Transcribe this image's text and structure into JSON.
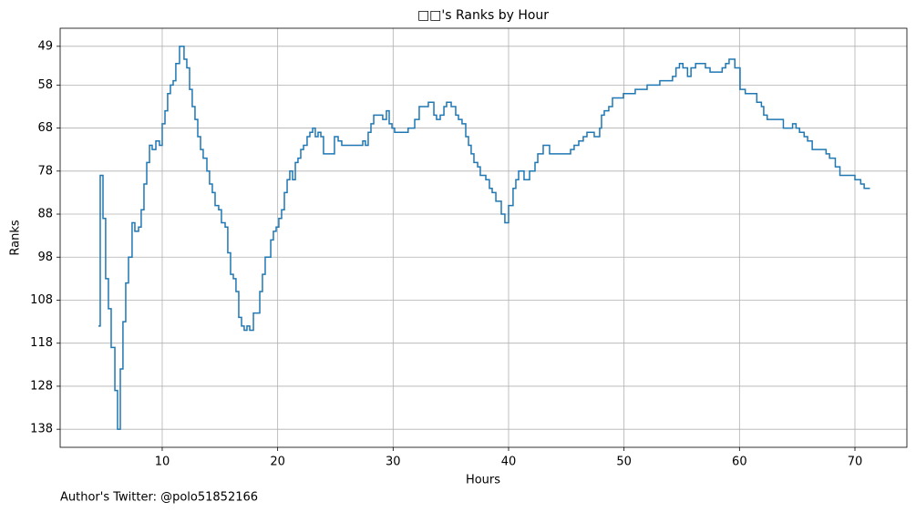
{
  "chart_data": {
    "type": "line",
    "drawstyle": "steps-post",
    "title": "□□'s Ranks by Hour",
    "x_label": "Hours",
    "y_label": "Ranks",
    "footnote": "Author's Twitter: @polo51852166",
    "x": [
      4.47,
      4.63,
      4.87,
      5.1,
      5.34,
      5.58,
      5.9,
      6.13,
      6.37,
      6.6,
      6.84,
      7.08,
      7.39,
      7.63,
      7.95,
      8.18,
      8.42,
      8.66,
      8.9,
      9.13,
      9.45,
      9.76,
      10,
      10.24,
      10.47,
      10.71,
      10.95,
      11.18,
      11.5,
      11.89,
      12.13,
      12.37,
      12.6,
      12.84,
      13.08,
      13.32,
      13.55,
      13.87,
      14.1,
      14.34,
      14.58,
      14.89,
      15.13,
      15.45,
      15.68,
      15.92,
      16.16,
      16.39,
      16.63,
      16.87,
      17.1,
      17.34,
      17.58,
      17.9,
      18.45,
      18.68,
      18.92,
      19.4,
      19.63,
      19.87,
      20.1,
      20.34,
      20.58,
      20.82,
      21.05,
      21.29,
      21.53,
      21.76,
      22,
      22.24,
      22.55,
      22.79,
      23.03,
      23.26,
      23.5,
      23.74,
      23.97,
      24.92,
      25.24,
      25.55,
      26.34,
      27.37,
      27.6,
      27.84,
      28.08,
      28.32,
      29.1,
      29.42,
      29.66,
      29.9,
      30.13,
      31.3,
      31.87,
      32.26,
      33.05,
      33.53,
      33.76,
      34.08,
      34.4,
      34.63,
      35.03,
      35.42,
      35.66,
      35.97,
      36.29,
      36.53,
      36.76,
      37,
      37.32,
      37.55,
      38.03,
      38.34,
      38.58,
      38.9,
      39.37,
      39.68,
      40,
      40.39,
      40.63,
      40.87,
      41.34,
      41.82,
      42.29,
      42.53,
      43,
      43.55,
      45.37,
      45.68,
      46.08,
      46.47,
      46.79,
      47.42,
      47.89,
      48.05,
      48.29,
      48.68,
      49,
      49.63,
      49.95,
      50.97,
      52,
      53.1,
      54.2,
      54.5,
      54.8,
      55.1,
      55.5,
      55.8,
      56.2,
      57.05,
      57.45,
      58.5,
      58.8,
      59.1,
      59.6,
      60.05,
      60.5,
      61.5,
      61.9,
      62.1,
      62.4,
      63.8,
      64.6,
      64.9,
      65.2,
      65.6,
      65.9,
      66.3,
      67.5,
      67.8,
      68.3,
      68.7,
      70,
      70.5,
      70.8,
      71.3
    ],
    "series": [
      {
        "name": "Ranks",
        "color": "#1f77b4",
        "values": [
          114,
          79,
          89,
          103,
          110,
          119,
          129,
          138,
          124,
          113,
          104,
          98,
          90,
          92,
          91,
          87,
          81,
          76,
          72,
          73,
          71,
          72,
          67,
          64,
          60,
          58,
          57,
          53,
          49,
          52,
          54,
          59,
          63,
          66,
          70,
          73,
          75,
          78,
          81,
          83,
          86,
          87,
          90,
          91,
          97,
          102,
          103,
          106,
          112,
          114,
          115,
          114,
          115,
          111,
          106,
          102,
          98,
          94,
          92,
          91,
          89,
          87,
          83,
          80,
          78,
          80,
          76,
          75,
          73,
          72,
          70,
          69,
          68,
          70,
          69,
          70,
          74,
          70,
          71,
          72,
          72,
          71,
          72,
          69,
          67,
          65,
          66,
          64,
          67,
          68,
          69,
          68,
          66,
          63,
          62,
          65,
          66,
          65,
          63,
          62,
          63,
          65,
          66,
          67,
          70,
          72,
          74,
          76,
          77,
          79,
          80,
          82,
          83,
          85,
          88,
          90,
          86,
          82,
          80,
          78,
          80,
          78,
          76,
          74,
          72,
          74,
          73,
          72,
          71,
          70,
          69,
          70,
          68,
          65,
          64,
          63,
          61,
          61,
          60,
          59,
          58,
          57,
          56,
          54,
          53,
          54,
          56,
          54,
          53,
          54,
          55,
          54,
          53,
          52,
          54,
          59,
          60,
          62,
          63,
          65,
          66,
          68,
          67,
          68,
          69,
          70,
          71,
          73,
          74,
          75,
          77,
          79,
          80,
          81,
          82,
          82
        ]
      }
    ],
    "xlim": [
      1.16,
      74.5
    ],
    "xticks": [
      10,
      20,
      30,
      40,
      50,
      60,
      70
    ],
    "ylim": [
      142.2,
      44.8
    ],
    "yticks": [
      49,
      58,
      68,
      78,
      88,
      98,
      108,
      118,
      128,
      138
    ],
    "grid": true
  }
}
